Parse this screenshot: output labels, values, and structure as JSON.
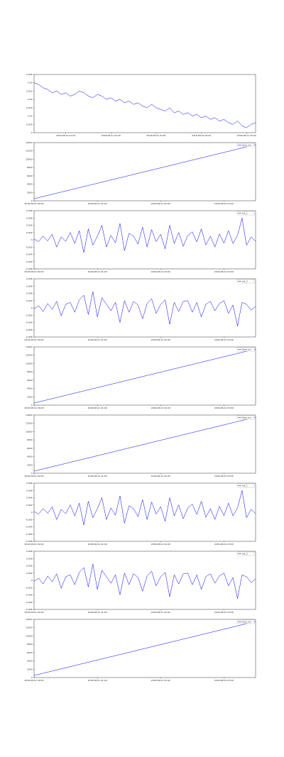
{
  "chart_data": [
    {
      "type": "line",
      "color": "#0000ff",
      "xlim": [
        0,
        49
      ],
      "ylim": [
        0,
        0.035
      ],
      "yticks": [
        0,
        0.005,
        0.01,
        0.015,
        0.02,
        0.025,
        0.03,
        0.035
      ],
      "xticks": [
        {
          "value": 7,
          "label": "2018-08-01 01:00"
        },
        {
          "value": 17,
          "label": "2018-08-01 02:00"
        },
        {
          "value": 27,
          "label": "2018-08-01 03:00"
        },
        {
          "value": 37,
          "label": "2018-08-01 04:00"
        },
        {
          "value": 47,
          "label": "2018-08-01 05:00"
        }
      ],
      "x": [
        0,
        1,
        2,
        3,
        4,
        5,
        6,
        7,
        8,
        9,
        10,
        11,
        12,
        13,
        14,
        15,
        16,
        17,
        18,
        19,
        20,
        21,
        22,
        23,
        24,
        25,
        26,
        27,
        28,
        29,
        30,
        31,
        32,
        33,
        34,
        35,
        36,
        37,
        38,
        39,
        40,
        41,
        42,
        43,
        44,
        45,
        46,
        47,
        48,
        49
      ],
      "values": [
        0.03,
        0.029,
        0.027,
        0.026,
        0.024,
        0.025,
        0.023,
        0.024,
        0.022,
        0.023,
        0.025,
        0.024,
        0.022,
        0.021,
        0.023,
        0.022,
        0.02,
        0.021,
        0.019,
        0.02,
        0.018,
        0.019,
        0.017,
        0.018,
        0.016,
        0.015,
        0.017,
        0.015,
        0.014,
        0.013,
        0.015,
        0.012,
        0.013,
        0.011,
        0.012,
        0.01,
        0.011,
        0.009,
        0.01,
        0.008,
        0.009,
        0.007,
        0.008,
        0.006,
        0.005,
        0.007,
        0.004,
        0.003,
        0.005,
        0.006
      ]
    },
    {
      "type": "line",
      "xlim": [
        0,
        49
      ],
      "ylim": [
        0,
        14000
      ],
      "yticks": [
        0,
        2000,
        4000,
        6000,
        8000,
        10000,
        12000,
        14000
      ],
      "xticks": [
        {
          "value": 0,
          "label": "2018-08-01 00:00"
        },
        {
          "value": 14,
          "label": "2018-08-01 01:00"
        },
        {
          "value": 28,
          "label": "2018-08-01 02:00"
        },
        {
          "value": 42,
          "label": "2018-08-01 03:00"
        }
      ],
      "x": [
        0,
        49
      ],
      "series": [
        {
          "name": "time_ms",
          "color": "#0000ff",
          "values": [
            500,
            13500
          ]
        }
      ]
    },
    {
      "type": "line",
      "xlim": [
        0,
        49
      ],
      "ylim": [
        -0.008,
        0.008
      ],
      "yticks": [
        -0.008,
        -0.006,
        -0.004,
        -0.002,
        0,
        0.002,
        0.004,
        0.006,
        0.008
      ],
      "xticks": [
        {
          "value": 0,
          "label": "2018-08-01 00:00"
        },
        {
          "value": 14,
          "label": "2018-08-01 01:00"
        },
        {
          "value": 28,
          "label": "2018-08-01 02:00"
        },
        {
          "value": 42,
          "label": "2018-08-01 03:00"
        }
      ],
      "x": [
        0,
        1,
        2,
        3,
        4,
        5,
        6,
        7,
        8,
        9,
        10,
        11,
        12,
        13,
        14,
        15,
        16,
        17,
        18,
        19,
        20,
        21,
        22,
        23,
        24,
        25,
        26,
        27,
        28,
        29,
        30,
        31,
        32,
        33,
        34,
        35,
        36,
        37,
        38,
        39,
        40,
        41,
        42,
        43,
        44,
        45,
        46,
        47,
        48,
        49
      ],
      "series": [
        {
          "name": "ret_1",
          "color": "#0000ff",
          "values": [
            0.0002,
            -0.0005,
            0.001,
            -0.0003,
            0.0015,
            -0.002,
            0.0008,
            -0.0004,
            0.002,
            -0.001,
            0.0025,
            -0.0035,
            0.003,
            -0.0015,
            0.001,
            0.004,
            -0.002,
            0.0012,
            -0.0008,
            0.0045,
            -0.003,
            0.0018,
            0.001,
            -0.0012,
            0.0035,
            -0.002,
            0.0028,
            -0.0005,
            0.0015,
            -0.0025,
            0.004,
            -0.001,
            0.002,
            -0.0018,
            0.0012,
            0.0022,
            -0.0006,
            0.003,
            -0.0014,
            0.001,
            -0.002,
            0.0016,
            -0.0009,
            0.0025,
            -0.001,
            0.0012,
            0.006,
            -0.0015,
            0.0008,
            -0.0004
          ]
        }
      ]
    },
    {
      "type": "line",
      "xlim": [
        0,
        49
      ],
      "ylim": [
        -0.008,
        0.008
      ],
      "yticks": [
        -0.008,
        -0.006,
        -0.004,
        -0.002,
        0,
        0.002,
        0.004,
        0.006,
        0.008
      ],
      "xticks": [
        {
          "value": 0,
          "label": "2018-08-01 00:00"
        },
        {
          "value": 14,
          "label": "2018-08-01 01:00"
        },
        {
          "value": 28,
          "label": "2018-08-01 02:00"
        },
        {
          "value": 42,
          "label": "2018-08-01 03:00"
        }
      ],
      "x": [
        0,
        1,
        2,
        3,
        4,
        5,
        6,
        7,
        8,
        9,
        10,
        11,
        12,
        13,
        14,
        15,
        16,
        17,
        18,
        19,
        20,
        21,
        22,
        23,
        24,
        25,
        26,
        27,
        28,
        29,
        30,
        31,
        32,
        33,
        34,
        35,
        36,
        37,
        38,
        39,
        40,
        41,
        42,
        43,
        44,
        45,
        46,
        47,
        48,
        49
      ],
      "series": [
        {
          "name": "ret_2",
          "color": "#0000ff",
          "values": [
            -0.0003,
            0.0006,
            -0.001,
            0.0012,
            -0.0004,
            0.0018,
            -0.0022,
            0.001,
            0.0015,
            -0.0012,
            0.0022,
            0.0035,
            -0.0018,
            0.0045,
            -0.0025,
            0.0028,
            0.001,
            -0.0008,
            0.0015,
            -0.004,
            0.002,
            -0.0012,
            0.0018,
            0.0008,
            -0.003,
            0.0012,
            0.0025,
            -0.0015,
            0.001,
            0.0022,
            -0.0045,
            0.0015,
            -0.001,
            0.0018,
            0.002,
            -0.0012,
            0.0015,
            -0.0025,
            0.001,
            0.0018,
            -0.0008,
            0.0012,
            0.002,
            -0.0015,
            0.0008,
            -0.005,
            0.0015,
            0.001,
            -0.0006,
            0.0004
          ]
        }
      ]
    },
    {
      "type": "line",
      "xlim": [
        0,
        49
      ],
      "ylim": [
        0,
        14000
      ],
      "yticks": [
        0,
        2000,
        4000,
        6000,
        8000,
        10000,
        12000,
        14000
      ],
      "xticks": [
        {
          "value": 0,
          "label": "2018-08-01 00:00"
        },
        {
          "value": 14,
          "label": "2018-08-01 01:00"
        },
        {
          "value": 28,
          "label": "2018-08-01 02:00"
        },
        {
          "value": 42,
          "label": "2018-08-01 03:00"
        }
      ],
      "x": [
        0,
        49
      ],
      "series": [
        {
          "name": "time_ms",
          "color": "#0000ff",
          "values": [
            500,
            13500
          ]
        }
      ]
    },
    {
      "type": "line",
      "xlim": [
        0,
        49
      ],
      "ylim": [
        0,
        14000
      ],
      "yticks": [
        0,
        2000,
        4000,
        6000,
        8000,
        10000,
        12000,
        14000
      ],
      "xticks": [
        {
          "value": 0,
          "label": "2018-08-01 00:00"
        },
        {
          "value": 14,
          "label": "2018-08-01 01:00"
        },
        {
          "value": 28,
          "label": "2018-08-01 02:00"
        },
        {
          "value": 42,
          "label": "2018-08-01 03:00"
        }
      ],
      "x": [
        0,
        49
      ],
      "series": [
        {
          "name": "time_ms",
          "color": "#0000ff",
          "values": [
            500,
            13500
          ]
        }
      ]
    },
    {
      "type": "line",
      "xlim": [
        0,
        49
      ],
      "ylim": [
        -0.008,
        0.008
      ],
      "yticks": [
        -0.008,
        -0.006,
        -0.004,
        -0.002,
        0,
        0.002,
        0.004,
        0.006,
        0.008
      ],
      "xticks": [
        {
          "value": 0,
          "label": "2018-08-01 00:00"
        },
        {
          "value": 14,
          "label": "2018-08-01 01:00"
        },
        {
          "value": 28,
          "label": "2018-08-01 02:00"
        },
        {
          "value": 42,
          "label": "2018-08-01 03:00"
        }
      ],
      "x": [
        0,
        1,
        2,
        3,
        4,
        5,
        6,
        7,
        8,
        9,
        10,
        11,
        12,
        13,
        14,
        15,
        16,
        17,
        18,
        19,
        20,
        21,
        22,
        23,
        24,
        25,
        26,
        27,
        28,
        29,
        30,
        31,
        32,
        33,
        34,
        35,
        36,
        37,
        38,
        39,
        40,
        41,
        42,
        43,
        44,
        45,
        46,
        47,
        48,
        49
      ],
      "series": [
        {
          "name": "ret_1",
          "color": "#0000ff",
          "values": [
            0.0002,
            -0.0005,
            0.001,
            -0.0003,
            0.0015,
            -0.002,
            0.0008,
            -0.0004,
            0.002,
            -0.001,
            0.0025,
            -0.0035,
            0.003,
            -0.0015,
            0.001,
            0.004,
            -0.002,
            0.0012,
            -0.0008,
            0.0045,
            -0.003,
            0.0018,
            0.001,
            -0.0012,
            0.0035,
            -0.002,
            0.0028,
            -0.0005,
            0.0015,
            -0.0025,
            0.004,
            -0.001,
            0.002,
            -0.0018,
            0.0012,
            0.0022,
            -0.0006,
            0.003,
            -0.0014,
            0.001,
            -0.002,
            0.0016,
            -0.0009,
            0.0025,
            -0.001,
            0.0012,
            0.006,
            -0.0015,
            0.0008,
            -0.0004
          ]
        }
      ]
    },
    {
      "type": "line",
      "xlim": [
        0,
        49
      ],
      "ylim": [
        -0.008,
        0.008
      ],
      "yticks": [
        -0.008,
        -0.006,
        -0.004,
        -0.002,
        0,
        0.002,
        0.004,
        0.006,
        0.008
      ],
      "xticks": [
        {
          "value": 0,
          "label": "2018-08-01 00:00"
        },
        {
          "value": 14,
          "label": "2018-08-01 01:00"
        },
        {
          "value": 28,
          "label": "2018-08-01 02:00"
        },
        {
          "value": 42,
          "label": "2018-08-01 03:00"
        }
      ],
      "x": [
        0,
        1,
        2,
        3,
        4,
        5,
        6,
        7,
        8,
        9,
        10,
        11,
        12,
        13,
        14,
        15,
        16,
        17,
        18,
        19,
        20,
        21,
        22,
        23,
        24,
        25,
        26,
        27,
        28,
        29,
        30,
        31,
        32,
        33,
        34,
        35,
        36,
        37,
        38,
        39,
        40,
        41,
        42,
        43,
        44,
        45,
        46,
        47,
        48,
        49
      ],
      "series": [
        {
          "name": "ret_2",
          "color": "#0000ff",
          "values": [
            -0.0003,
            0.0006,
            -0.001,
            0.0012,
            -0.0004,
            0.0018,
            -0.0022,
            0.001,
            0.0015,
            -0.0012,
            0.0022,
            0.0035,
            -0.0018,
            0.0045,
            -0.0025,
            0.0028,
            0.001,
            -0.0008,
            0.0015,
            -0.004,
            0.002,
            -0.0012,
            0.0018,
            0.0008,
            -0.003,
            0.0012,
            0.0025,
            -0.0015,
            0.001,
            0.0022,
            -0.0045,
            0.0015,
            -0.001,
            0.0018,
            0.002,
            -0.0012,
            0.0015,
            -0.0025,
            0.001,
            0.0018,
            -0.0008,
            0.0012,
            0.002,
            -0.0015,
            0.0008,
            -0.005,
            0.0015,
            0.001,
            -0.0006,
            0.0004
          ]
        }
      ]
    },
    {
      "type": "line",
      "xlim": [
        0,
        49
      ],
      "ylim": [
        0,
        14000
      ],
      "yticks": [
        0,
        2000,
        4000,
        6000,
        8000,
        10000,
        12000,
        14000
      ],
      "xticks": [
        {
          "value": 0,
          "label": "2018-08-01 00:00"
        },
        {
          "value": 14,
          "label": "2018-08-01 01:00"
        },
        {
          "value": 28,
          "label": "2018-08-01 02:00"
        },
        {
          "value": 42,
          "label": "2018-08-01 03:00"
        }
      ],
      "x": [
        0,
        49
      ],
      "series": [
        {
          "name": "time_ms",
          "color": "#0000ff",
          "values": [
            500,
            13500
          ]
        }
      ]
    }
  ]
}
